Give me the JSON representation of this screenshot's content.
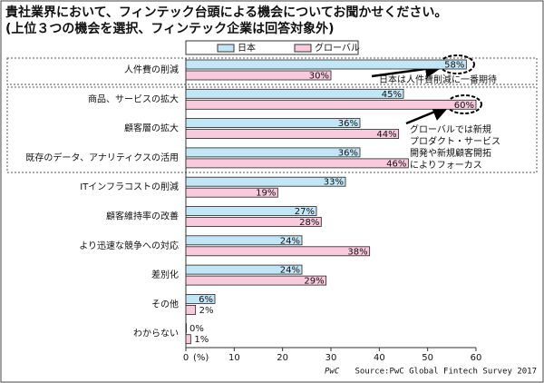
{
  "chart_data": {
    "type": "hbar",
    "title": "貴社業界において、フィンテック台頭による機会についてお聞かせください。",
    "subtitle": "(上位３つの機会を選択、フィンテック企業は回答対象外)",
    "categories": [
      "人件費の削減",
      "商品、サービスの拡大",
      "顧客層の拡大",
      "既存のデータ、アナリティクスの活用",
      "ITインフラコストの削減",
      "顧客維持率の改善",
      "より迅速な競争への対応",
      "差別化",
      "その他",
      "わからない"
    ],
    "series": [
      {
        "name": "日本",
        "color": "#c3e6f7",
        "values": [
          58,
          45,
          36,
          36,
          33,
          27,
          24,
          24,
          6,
          0
        ],
        "value_labels": [
          "58%",
          "45%",
          "36%",
          "36%",
          "33%",
          "27%",
          "24%",
          "24%",
          "6%",
          "0%"
        ]
      },
      {
        "name": "グローバル",
        "color": "#f9c9dc",
        "values": [
          30,
          60,
          44,
          46,
          19,
          28,
          38,
          29,
          2,
          1
        ],
        "value_labels": [
          "30%",
          "60%",
          "44%",
          "46%",
          "19%",
          "28%",
          "38%",
          "29%",
          "2%",
          "1%"
        ]
      }
    ],
    "xlim": [
      0,
      60
    ],
    "xticks": [
      0,
      10,
      20,
      30,
      40,
      50,
      60
    ],
    "x_axis_unit": "(%)",
    "legend": "top",
    "annotations": [
      {
        "text": [
          "日本は人件費削減に一番期待"
        ]
      },
      {
        "text": [
          "グローバルでは新規",
          "プロダクト・サービス",
          "開発や新規顧客開拓",
          "によりフォーカス"
        ]
      }
    ],
    "logo": "PwC",
    "source": "Source:PwC Global Fintech Survey 2017"
  }
}
